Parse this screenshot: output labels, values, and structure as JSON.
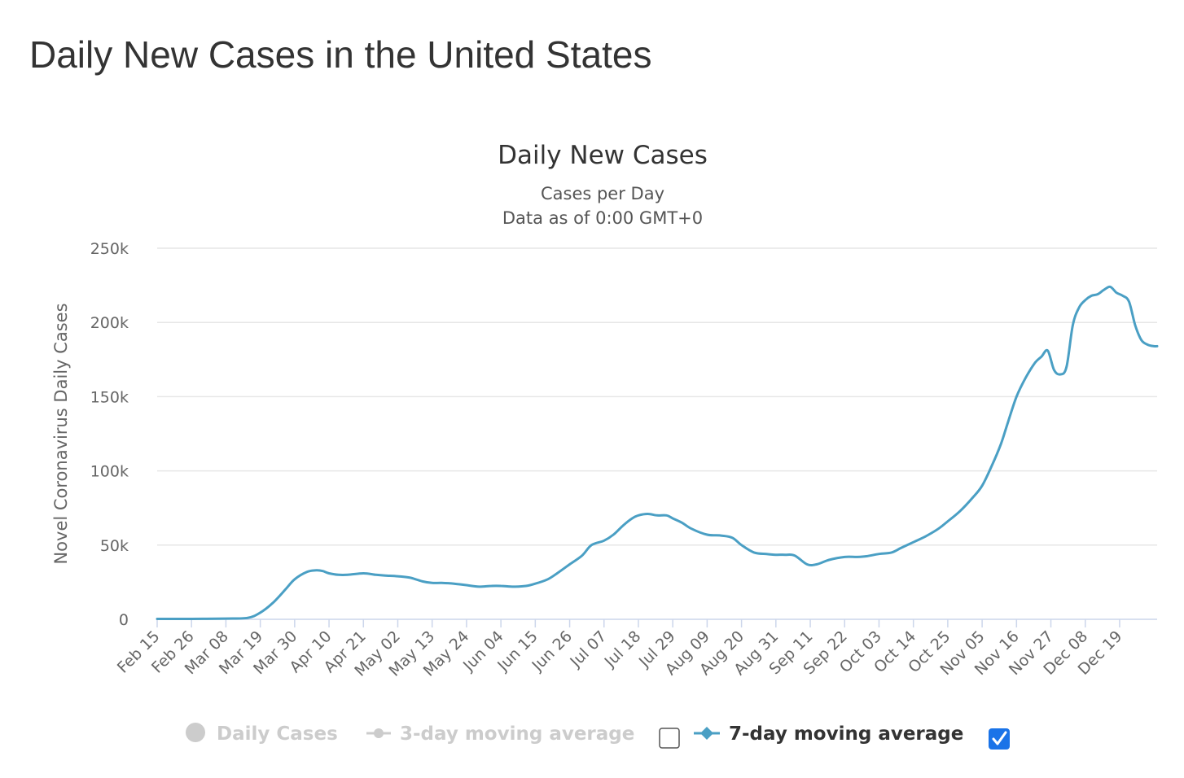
{
  "page": {
    "title": "Daily New Cases in the United States"
  },
  "chart_data": {
    "type": "line",
    "title": "Daily New Cases",
    "subtitle_lines": [
      "Cases per Day",
      "Data as of 0:00 GMT+0"
    ],
    "ylabel": "Novel Coronavirus Daily Cases",
    "xlabel": "",
    "ylim": [
      0,
      250000
    ],
    "y_ticks": [
      0,
      50000,
      100000,
      150000,
      200000,
      250000
    ],
    "y_tick_labels": [
      "0",
      "50k",
      "100k",
      "150k",
      "200k",
      "250k"
    ],
    "x_tick_labels": [
      "Feb 15",
      "Feb 26",
      "Mar 08",
      "Mar 19",
      "Mar 30",
      "Apr 10",
      "Apr 21",
      "May 02",
      "May 13",
      "May 24",
      "Jun 04",
      "Jun 15",
      "Jun 26",
      "Jul 07",
      "Jul 18",
      "Jul 29",
      "Aug 09",
      "Aug 20",
      "Aug 31",
      "Sep 11",
      "Sep 22",
      "Oct 03",
      "Oct 14",
      "Oct 25",
      "Nov 05",
      "Nov 16",
      "Nov 27",
      "Dec 08",
      "Dec 19"
    ],
    "x_start": "Feb 15",
    "x_end": "Dec 31",
    "grid": "horizontal",
    "legend_position": "bottom",
    "series": [
      {
        "name": "7-day moving average",
        "color": "#4a9fc4",
        "visible": true,
        "x": [
          "Feb 15",
          "Feb 26",
          "Mar 08",
          "Mar 15",
          "Mar 19",
          "Mar 23",
          "Mar 27",
          "Mar 30",
          "Apr 03",
          "Apr 06",
          "Apr 08",
          "Apr 10",
          "Apr 13",
          "Apr 16",
          "Apr 21",
          "Apr 25",
          "Apr 28",
          "May 02",
          "May 06",
          "May 10",
          "May 13",
          "May 16",
          "May 20",
          "May 24",
          "May 28",
          "Jun 01",
          "Jun 04",
          "Jun 08",
          "Jun 12",
          "Jun 15",
          "Jun 19",
          "Jun 22",
          "Jun 26",
          "Jun 30",
          "Jul 03",
          "Jul 07",
          "Jul 10",
          "Jul 13",
          "Jul 16",
          "Jul 18",
          "Jul 21",
          "Jul 24",
          "Jul 27",
          "Jul 29",
          "Aug 01",
          "Aug 04",
          "Aug 09",
          "Aug 13",
          "Aug 17",
          "Aug 20",
          "Aug 24",
          "Aug 28",
          "Aug 31",
          "Sep 03",
          "Sep 06",
          "Sep 10",
          "Sep 13",
          "Sep 17",
          "Sep 22",
          "Sep 26",
          "Sep 29",
          "Oct 03",
          "Oct 07",
          "Oct 10",
          "Oct 14",
          "Oct 18",
          "Oct 22",
          "Oct 25",
          "Oct 29",
          "Nov 02",
          "Nov 05",
          "Nov 08",
          "Nov 11",
          "Nov 13",
          "Nov 16",
          "Nov 19",
          "Nov 22",
          "Nov 24",
          "Nov 26",
          "Nov 28",
          "Nov 30",
          "Dec 02",
          "Dec 04",
          "Dec 06",
          "Dec 08",
          "Dec 10",
          "Dec 12",
          "Dec 14",
          "Dec 16",
          "Dec 18",
          "Dec 20",
          "Dec 22",
          "Dec 24",
          "Dec 26",
          "Dec 28",
          "Dec 30",
          "Dec 31"
        ],
        "values": [
          300,
          300,
          500,
          1000,
          4500,
          11000,
          20000,
          27000,
          32000,
          33000,
          32500,
          31000,
          30000,
          30000,
          31000,
          30000,
          29500,
          29000,
          28000,
          25500,
          24500,
          24500,
          24000,
          23000,
          22000,
          22500,
          22500,
          22000,
          22500,
          24000,
          27000,
          31000,
          37000,
          43000,
          50000,
          53000,
          57000,
          63000,
          68000,
          70000,
          71000,
          70000,
          70000,
          68000,
          65000,
          61000,
          57000,
          56500,
          55000,
          50000,
          45000,
          44000,
          43500,
          43500,
          43000,
          37000,
          37000,
          40000,
          42000,
          42000,
          42500,
          44000,
          45000,
          48000,
          52000,
          56000,
          61000,
          66000,
          73000,
          82000,
          90000,
          103000,
          118000,
          131000,
          150000,
          163000,
          173000,
          177000,
          181000,
          168000,
          165000,
          170000,
          198000,
          210000,
          215000,
          218000,
          219000,
          222000,
          224000,
          220000,
          218000,
          214000,
          198000,
          188000,
          185000,
          184000,
          184000
        ]
      }
    ],
    "legend": [
      {
        "label": "Daily Cases",
        "active": false,
        "marker": "circle"
      },
      {
        "label": "3-day moving average",
        "active": false,
        "marker": "line-circle",
        "checkbox_checked": false
      },
      {
        "label": "7-day moving average",
        "active": true,
        "marker": "line-diamond",
        "checkbox_checked": true
      }
    ],
    "colors": {
      "series": "#4a9fc4",
      "inactive": "#cccccc",
      "grid": "#e6e6e6",
      "axis": "#ccd6eb",
      "checkbox_checked": "#1a73e8"
    }
  }
}
